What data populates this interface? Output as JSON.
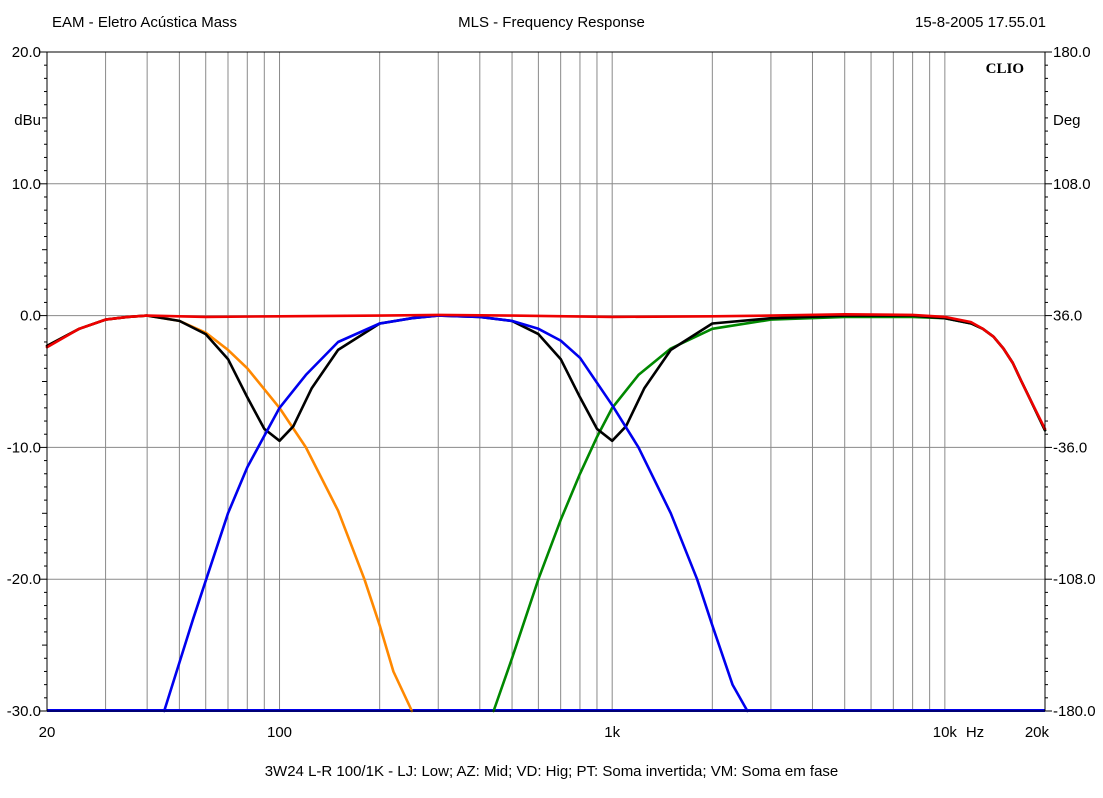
{
  "header": {
    "left": "EAM - Eletro Acústica Mass",
    "center": "MLS - Frequency Response",
    "right": "15-8-2005 17.55.01"
  },
  "brand": "CLIO",
  "caption": "3W24 L-R 100/1K - LJ: Low; AZ: Mid; VD: Hig; PT: Soma invertida;  VM: Soma em fase",
  "chart_data": {
    "type": "line",
    "x_scale": "log",
    "xlim": [
      20,
      20000
    ],
    "ylim": [
      -30,
      20
    ],
    "y2lim": [
      -180,
      180
    ],
    "grid": true,
    "ylabel": "dBu",
    "y2label": "Deg",
    "xunit": "Hz",
    "y_ticks": [
      {
        "value": 20,
        "label": "20.0"
      },
      {
        "value": 10,
        "label": "10.0"
      },
      {
        "value": 0,
        "label": "0.0"
      },
      {
        "value": -10,
        "label": "-10.0"
      },
      {
        "value": -20,
        "label": "-20.0"
      },
      {
        "value": -30,
        "label": "-30.0"
      }
    ],
    "y2_ticks": [
      {
        "value": 180,
        "label": "180.0"
      },
      {
        "value": 108,
        "label": "108.0"
      },
      {
        "value": 36,
        "label": "36.0"
      },
      {
        "value": -36,
        "label": "-36.0"
      },
      {
        "value": -108,
        "label": "-108.0"
      },
      {
        "value": -180,
        "label": "-180.0"
      }
    ],
    "x_ticks": [
      {
        "value": 20,
        "label": "20"
      },
      {
        "value": 100,
        "label": "100"
      },
      {
        "value": 1000,
        "label": "1k"
      },
      {
        "value": 10000,
        "label": "10k"
      },
      {
        "value": 20000,
        "label": "20k"
      }
    ],
    "series": [
      {
        "key": "low",
        "color": "#ff8800",
        "x": [
          20,
          25,
          30,
          35,
          40,
          50,
          60,
          70,
          80,
          100,
          120,
          150,
          180,
          200,
          220,
          250
        ],
        "y": [
          -2.3,
          -1.0,
          -0.3,
          -0.1,
          0.0,
          -0.4,
          -1.3,
          -2.6,
          -4.0,
          -7.0,
          -10.0,
          -14.8,
          -20.0,
          -23.5,
          -27.0,
          -30.0
        ]
      },
      {
        "key": "mid",
        "color": "#0000ee",
        "x": [
          45,
          55,
          70,
          80,
          100,
          120,
          150,
          200,
          250,
          300,
          400,
          500,
          600,
          700,
          800,
          1000,
          1200,
          1500,
          1800,
          2000,
          2300,
          2550
        ],
        "y": [
          -30.0,
          -23.0,
          -15.0,
          -11.5,
          -7.0,
          -4.5,
          -2.0,
          -0.6,
          -0.2,
          0.0,
          -0.1,
          -0.4,
          -1.0,
          -1.9,
          -3.2,
          -6.8,
          -10.0,
          -15.0,
          -20.0,
          -23.5,
          -28.0,
          -30.0
        ]
      },
      {
        "key": "high",
        "color": "#008800",
        "x": [
          440,
          500,
          600,
          700,
          800,
          900,
          1000,
          1200,
          1500,
          2000,
          3000,
          5000,
          8000,
          10000,
          12000,
          13000,
          14000,
          15000,
          16000,
          17000,
          18000,
          20000
        ],
        "y": [
          -30.0,
          -26.0,
          -20.0,
          -15.5,
          -12.0,
          -9.2,
          -7.0,
          -4.5,
          -2.5,
          -1.0,
          -0.3,
          -0.1,
          -0.1,
          -0.2,
          -0.6,
          -1.0,
          -1.6,
          -2.5,
          -3.6,
          -5.0,
          -6.3,
          -8.7
        ]
      },
      {
        "key": "sum_inverted",
        "color": "#000000",
        "x": [
          20,
          25,
          30,
          35,
          40,
          50,
          60,
          70,
          80,
          90,
          100,
          110,
          125,
          150,
          200,
          250,
          300,
          400,
          500,
          600,
          700,
          800,
          900,
          1000,
          1100,
          1250,
          1500,
          2000,
          3000,
          5000,
          8000,
          10000,
          12000,
          13000,
          14000,
          15000,
          16000,
          17000,
          18000,
          20000
        ],
        "y": [
          -2.3,
          -1.0,
          -0.3,
          -0.1,
          0.0,
          -0.4,
          -1.4,
          -3.3,
          -6.2,
          -8.6,
          -9.5,
          -8.4,
          -5.5,
          -2.6,
          -0.6,
          -0.2,
          0.0,
          -0.1,
          -0.4,
          -1.4,
          -3.3,
          -6.2,
          -8.6,
          -9.5,
          -8.4,
          -5.5,
          -2.6,
          -0.6,
          -0.2,
          0.0,
          0.0,
          -0.2,
          -0.6,
          -1.0,
          -1.6,
          -2.5,
          -3.6,
          -5.0,
          -6.3,
          -8.7
        ]
      },
      {
        "key": "sum_in_phase",
        "color": "#ee0000",
        "x": [
          20,
          25,
          30,
          35,
          40,
          60,
          100,
          200,
          300,
          500,
          1000,
          2000,
          3000,
          5000,
          8000,
          10000,
          12000,
          13000,
          14000,
          15000,
          16000,
          17000,
          18000,
          20000
        ],
        "y": [
          -2.4,
          -1.0,
          -0.3,
          -0.1,
          0.0,
          -0.1,
          -0.05,
          0.0,
          0.05,
          0.0,
          -0.1,
          -0.05,
          0.0,
          0.1,
          0.05,
          -0.1,
          -0.5,
          -1.0,
          -1.6,
          -2.5,
          -3.6,
          -5.0,
          -6.3,
          -8.6
        ]
      }
    ]
  }
}
